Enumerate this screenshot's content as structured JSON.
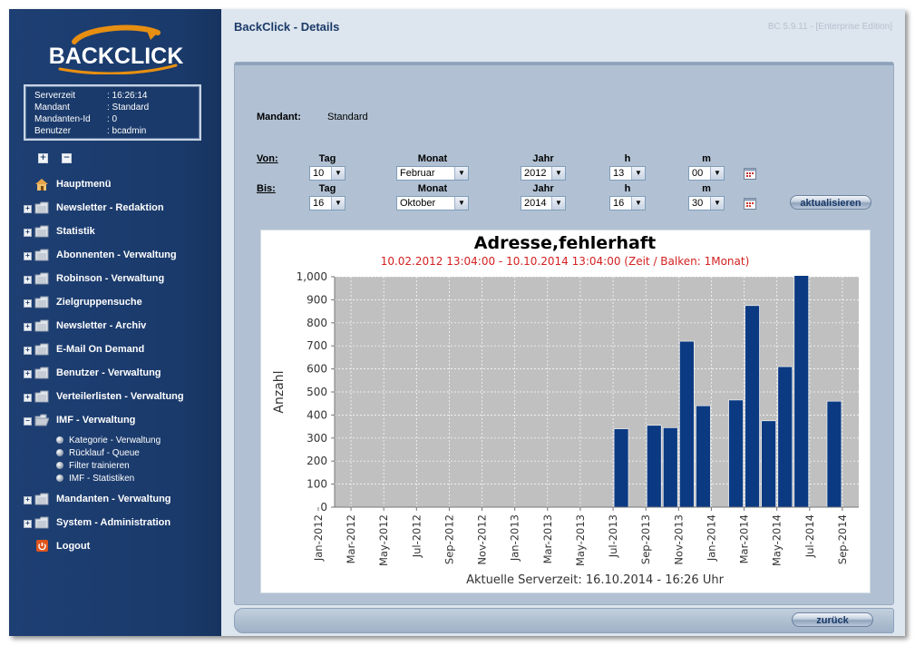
{
  "brand": {
    "logo_text": "BACKCLICK"
  },
  "info": [
    {
      "key": "Serverzeit",
      "value": ": 16:26:14"
    },
    {
      "key": "Mandant",
      "value": ": Standard"
    },
    {
      "key": "Mandanten-Id",
      "value": ": 0"
    },
    {
      "key": "Benutzer",
      "value": ": bcadmin"
    }
  ],
  "sidebar": {
    "expand_all": "+",
    "collapse_all": "−",
    "items": [
      {
        "label": "Hauptmenü"
      },
      {
        "label": "Newsletter - Redaktion"
      },
      {
        "label": "Statistik"
      },
      {
        "label": "Abonnenten - Verwaltung"
      },
      {
        "label": "Robinson - Verwaltung"
      },
      {
        "label": "Zielgruppensuche"
      },
      {
        "label": "Newsletter - Archiv"
      },
      {
        "label": "E-Mail On Demand"
      },
      {
        "label": "Benutzer - Verwaltung"
      },
      {
        "label": "Verteilerlisten - Verwaltung"
      },
      {
        "label": "IMF - Verwaltung"
      },
      {
        "label": "Mandanten - Verwaltung"
      },
      {
        "label": "System - Administration"
      },
      {
        "label": "Logout"
      }
    ],
    "subitems": [
      {
        "label": "Kategorie - Verwaltung"
      },
      {
        "label": "Rücklauf - Queue"
      },
      {
        "label": "Filter trainieren"
      },
      {
        "label": "IMF - Statistiken"
      }
    ]
  },
  "header": {
    "title": "BackClick - Details",
    "version": "BC 5.9.11 - [Enterprise Edition]"
  },
  "form": {
    "mandant_label": "Mandant:",
    "mandant_value": "Standard",
    "von_label": "Von:",
    "bis_label": "Bis:",
    "col_tag": "Tag",
    "col_monat": "Monat",
    "col_jahr": "Jahr",
    "col_h": "h",
    "col_m": "m",
    "von": {
      "tag": "10",
      "monat": "Februar",
      "jahr": "2012",
      "h": "13",
      "m": "00"
    },
    "bis": {
      "tag": "16",
      "monat": "Oktober",
      "jahr": "2014",
      "h": "16",
      "m": "30"
    },
    "refresh_label": "aktualisieren"
  },
  "footer": {
    "back_label": "zurück"
  },
  "chart_data": {
    "type": "bar",
    "title": "Adresse,fehlerhaft",
    "subtitle": "10.02.2012 13:04:00 - 10.10.2014 13:04:00  (Zeit / Balken: 1Monat)",
    "ylabel": "Anzahl",
    "xlabel": "Aktuelle Serverzeit: 16.10.2014 - 16:26 Uhr",
    "ylim": [
      0,
      1000
    ],
    "yticks": [
      "0",
      "100",
      "200",
      "300",
      "400",
      "500",
      "600",
      "700",
      "800",
      "900",
      "1,000"
    ],
    "xtick_labels": [
      "Jan-2012",
      "Mar-2012",
      "May-2012",
      "Jul-2012",
      "Sep-2012",
      "Nov-2012",
      "Jan-2013",
      "Mar-2013",
      "May-2013",
      "Jul-2013",
      "Sep-2013",
      "Nov-2013",
      "Jan-2014",
      "Mar-2014",
      "May-2014",
      "Jul-2014",
      "Sep-2014"
    ],
    "categories": [
      "Feb-2012",
      "Mar-2012",
      "Apr-2012",
      "May-2012",
      "Jun-2012",
      "Jul-2012",
      "Aug-2012",
      "Sep-2012",
      "Oct-2012",
      "Nov-2012",
      "Dec-2012",
      "Jan-2013",
      "Feb-2013",
      "Mar-2013",
      "Apr-2013",
      "May-2013",
      "Jun-2013",
      "Jul-2013",
      "Aug-2013",
      "Sep-2013",
      "Oct-2013",
      "Nov-2013",
      "Dec-2013",
      "Jan-2014",
      "Feb-2014",
      "Mar-2014",
      "Apr-2014",
      "May-2014",
      "Jun-2014",
      "Jul-2014",
      "Aug-2014",
      "Sep-2014"
    ],
    "values": [
      0,
      0,
      0,
      0,
      0,
      0,
      0,
      0,
      0,
      0,
      0,
      0,
      0,
      0,
      0,
      0,
      0,
      340,
      0,
      355,
      345,
      720,
      440,
      0,
      465,
      875,
      375,
      610,
      1005,
      0,
      460,
      0
    ],
    "grid": true,
    "colors": {
      "bar": "#0b3a82",
      "plot_bg": "#c0c0c0",
      "grid": "#ffffff",
      "subtitle": "#d42020"
    }
  }
}
